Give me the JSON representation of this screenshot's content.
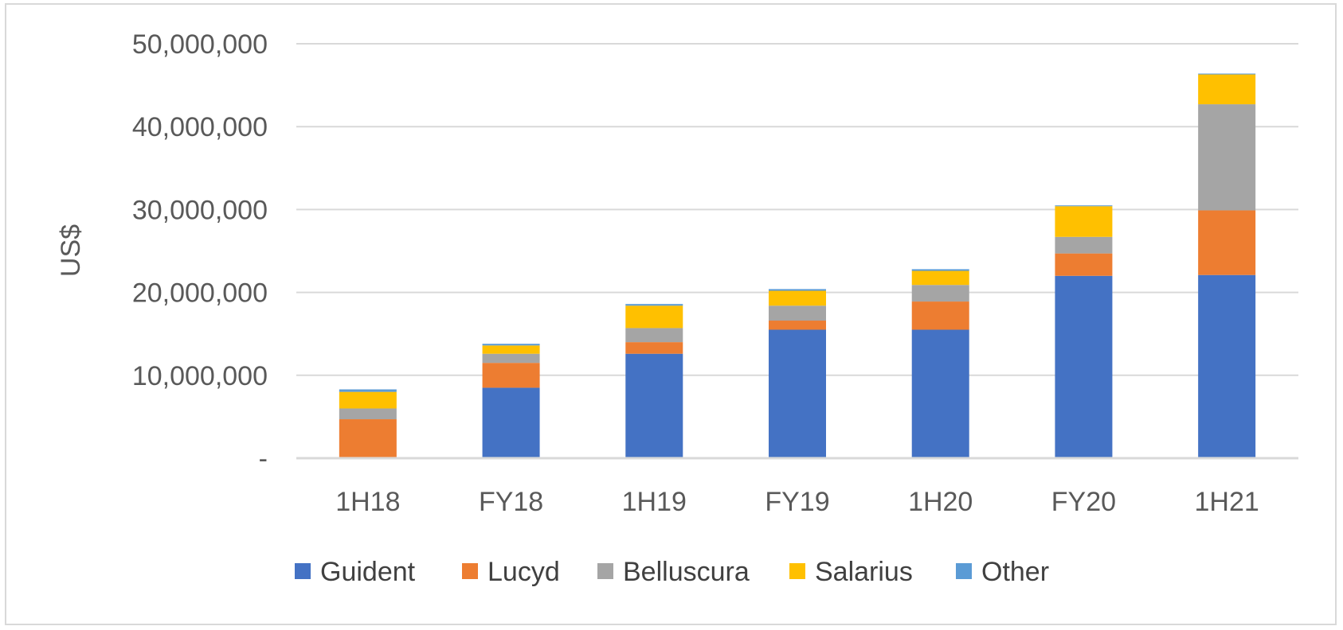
{
  "chart_data": {
    "type": "bar",
    "stacked": true,
    "title": "",
    "xlabel": "",
    "ylabel": "US$",
    "ylim": [
      0,
      50000000
    ],
    "yticks": [
      0,
      10000000,
      20000000,
      30000000,
      40000000,
      50000000
    ],
    "ytick_labels": [
      "-",
      "10,000,000",
      "20,000,000",
      "30,000,000",
      "40,000,000",
      "50,000,000"
    ],
    "grid": true,
    "legend_position": "bottom",
    "categories": [
      "1H18",
      "FY18",
      "1H19",
      "FY19",
      "1H20",
      "FY20",
      "1H21"
    ],
    "series": [
      {
        "name": "Guident",
        "color": "#4472C4",
        "values": [
          0,
          8500000,
          12600000,
          15500000,
          15500000,
          22000000,
          22100000
        ]
      },
      {
        "name": "Lucyd",
        "color": "#ED7D31",
        "values": [
          4700000,
          3000000,
          1400000,
          1100000,
          3400000,
          2700000,
          7800000
        ]
      },
      {
        "name": "Belluscura",
        "color": "#A5A5A5",
        "values": [
          1300000,
          1100000,
          1700000,
          1800000,
          2000000,
          2000000,
          12800000
        ]
      },
      {
        "name": "Salarius",
        "color": "#FFC000",
        "values": [
          2000000,
          1000000,
          2700000,
          1800000,
          1700000,
          3700000,
          3600000
        ]
      },
      {
        "name": "Other",
        "color": "#5B9BD5",
        "values": [
          300000,
          200000,
          200000,
          200000,
          200000,
          100000,
          100000
        ]
      }
    ]
  }
}
